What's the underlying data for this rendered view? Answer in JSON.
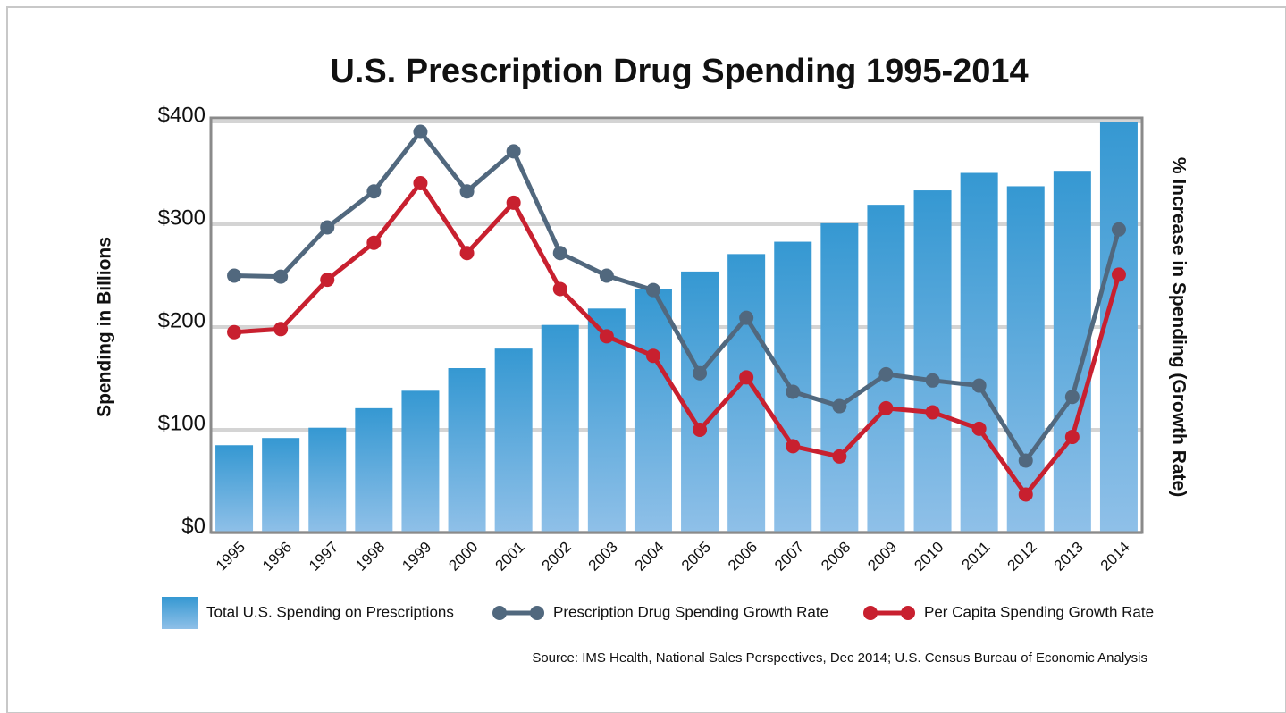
{
  "chart_data": {
    "type": "bar",
    "title": "U.S. Prescription Drug Spending 1995-2014",
    "y_label": "Spending in Billions",
    "y2_label": "% Increase in Spending (Growth Rate)",
    "source": "Source: IMS Health, National Sales Perspectives, Dec 2014; U.S. Census Bureau of Economic Analysis",
    "categories": [
      "1995",
      "1996",
      "1997",
      "1998",
      "1999",
      "2000",
      "2001",
      "2002",
      "2003",
      "2004",
      "2005",
      "2006",
      "2007",
      "2008",
      "2009",
      "2010",
      "2011",
      "2012",
      "2013",
      "2014"
    ],
    "series": [
      {
        "name": "Total U.S. Spending on Prescriptions",
        "type": "bar",
        "color": "#3598d2",
        "values": [
          85,
          92,
          102,
          121,
          138,
          160,
          179,
          202,
          218,
          237,
          254,
          271,
          283,
          301,
          319,
          333,
          350,
          337,
          352,
          400
        ]
      },
      {
        "name": "Prescription Drug Spending Growth Rate",
        "type": "line",
        "color": "#51687e",
        "values": [
          250,
          249,
          297,
          332,
          390,
          332,
          371,
          272,
          250,
          236,
          155,
          209,
          137,
          123,
          154,
          148,
          143,
          70,
          132,
          295
        ]
      },
      {
        "name": "Per Capita Spending Growth Rate",
        "type": "line",
        "color": "#c8202f",
        "values": [
          195,
          198,
          246,
          282,
          340,
          272,
          321,
          237,
          191,
          172,
          100,
          151,
          84,
          74,
          121,
          117,
          101,
          37,
          93,
          251
        ]
      }
    ],
    "ylim": [
      0,
      400
    ],
    "yticks": [
      {
        "value": 0,
        "label": "$0"
      },
      {
        "value": 100,
        "label": "$100"
      },
      {
        "value": 200,
        "label": "$200"
      },
      {
        "value": 300,
        "label": "$300"
      },
      {
        "value": 400,
        "label": "$400"
      }
    ],
    "grid": true
  }
}
